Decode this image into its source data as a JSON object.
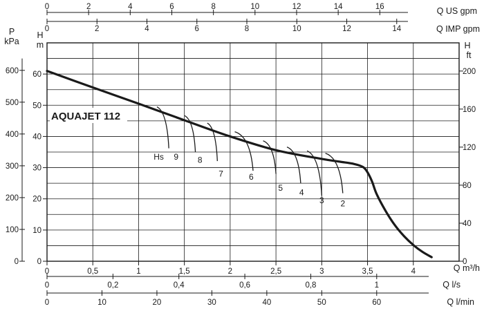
{
  "chart_data": {
    "type": "line",
    "title": "AQUAJET 112",
    "grid": true,
    "colors": {
      "curve": "#1a1a1a",
      "grid": "#1a1a1a",
      "text": "#1a1a1a"
    },
    "x_axis_primary": {
      "unit_label": "Q m³/h",
      "range": [
        0,
        4.5
      ],
      "ticks": [
        "0",
        "0,5",
        "1",
        "1,5",
        "2",
        "2,5",
        "3",
        "3,5",
        "4"
      ],
      "tick_values": [
        0,
        0.5,
        1,
        1.5,
        2,
        2.5,
        3,
        3.5,
        4
      ]
    },
    "x_axis_ls": {
      "unit_label": "Q l/s",
      "ticks": [
        "0",
        "0,2",
        "0,4",
        "0,6",
        "0,8",
        "1"
      ],
      "tick_values": [
        0,
        0.2,
        0.4,
        0.6,
        0.8,
        1
      ]
    },
    "x_axis_lmin": {
      "unit_label": "Q l/min",
      "ticks": [
        "0",
        "10",
        "20",
        "30",
        "40",
        "50",
        "60"
      ],
      "tick_values": [
        0,
        10,
        20,
        30,
        40,
        50,
        60
      ]
    },
    "x_axis_usgpm": {
      "unit_label": "Q US gpm",
      "ticks": [
        "0",
        "2",
        "4",
        "6",
        "8",
        "10",
        "12",
        "14",
        "16"
      ],
      "tick_values": [
        0,
        2,
        4,
        6,
        8,
        10,
        12,
        14,
        16
      ]
    },
    "x_axis_impgpm": {
      "unit_label": "Q IMP gpm",
      "ticks": [
        "0",
        "2",
        "4",
        "6",
        "8",
        "10",
        "12",
        "14"
      ],
      "tick_values": [
        0,
        2,
        4,
        6,
        8,
        10,
        12,
        14
      ]
    },
    "y_axis_m": {
      "unit_label_top": "H",
      "unit_label_bottom": "m",
      "range": [
        0,
        70
      ],
      "ticks": [
        "0",
        "10",
        "20",
        "30",
        "40",
        "50",
        "60"
      ],
      "tick_values": [
        0,
        10,
        20,
        30,
        40,
        50,
        60
      ]
    },
    "y_axis_kpa": {
      "unit_label_top": "P",
      "unit_label_bottom": "kPa",
      "ticks": [
        "0",
        "100",
        "200",
        "300",
        "400",
        "500",
        "600"
      ],
      "tick_values": [
        0,
        100,
        200,
        300,
        400,
        500,
        600
      ]
    },
    "y_axis_ft": {
      "unit_label_top": "H",
      "unit_label_bottom": "ft",
      "ticks": [
        "0",
        "40",
        "80",
        "120",
        "160",
        "200"
      ],
      "tick_values": [
        0,
        40,
        80,
        120,
        160,
        200
      ]
    },
    "main_curve": {
      "x": [
        0,
        0.5,
        1,
        1.5,
        2,
        2.5,
        3,
        3.2,
        3.35,
        3.45,
        3.5,
        3.55,
        3.6,
        3.7,
        3.8,
        3.9,
        4.0,
        4.1,
        4.2
      ],
      "y": [
        61,
        55.7,
        50.5,
        45.2,
        40,
        35.6,
        32.8,
        31.9,
        31.2,
        30.2,
        28.5,
        25.5,
        21.5,
        16,
        11.5,
        8,
        5.2,
        3,
        1.3
      ]
    },
    "hs_label": "Hs",
    "suction_curves": [
      {
        "label": "9",
        "start": [
          1.2,
          49.5
        ],
        "end": [
          1.33,
          36.2
        ],
        "label_at": [
          1.41,
          33.5
        ]
      },
      {
        "label": "8",
        "start": [
          1.5,
          46.7
        ],
        "end": [
          1.62,
          35.0
        ],
        "label_at": [
          1.67,
          32.5
        ]
      },
      {
        "label": "7",
        "start": [
          1.75,
          44.3
        ],
        "end": [
          1.86,
          32.1
        ],
        "label_at": [
          1.9,
          28.0
        ]
      },
      {
        "label": "6",
        "start": [
          2.05,
          41.5
        ],
        "end": [
          2.25,
          29.0
        ],
        "label_at": [
          2.23,
          27.0
        ]
      },
      {
        "label": "5",
        "start": [
          2.36,
          38.6
        ],
        "end": [
          2.5,
          28.0
        ],
        "label_at": [
          2.55,
          23.5
        ]
      },
      {
        "label": "4",
        "start": [
          2.62,
          36.6
        ],
        "end": [
          2.77,
          25.0
        ],
        "label_at": [
          2.78,
          22.0
        ]
      },
      {
        "label": "3",
        "start": [
          2.84,
          35.4
        ],
        "end": [
          3.0,
          21.0
        ],
        "label_at": [
          3.0,
          19.5
        ]
      },
      {
        "label": "2",
        "start": [
          3.04,
          34.6
        ],
        "end": [
          3.23,
          21.8
        ],
        "label_at": [
          3.23,
          18.5
        ]
      }
    ]
  }
}
